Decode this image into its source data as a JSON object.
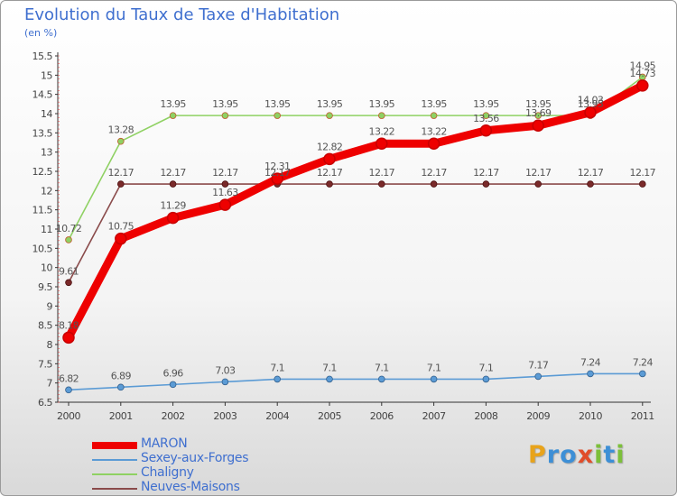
{
  "title": "Evolution du Taux de Taxe d'Habitation",
  "unit": "(en %)",
  "brand": {
    "letters": [
      "P",
      "r",
      "o",
      "x",
      "i",
      "t",
      "i"
    ],
    "colors": [
      "#e8a31b",
      "#3d8fd6",
      "#3d8fd6",
      "#e14d2a",
      "#7cbf3a",
      "#3d8fd6",
      "#7cbf3a"
    ]
  },
  "chart_data": {
    "type": "line",
    "title": "Evolution du Taux de Taxe d'Habitation",
    "ylabel": "(en %)",
    "xlabel": "",
    "ylim": [
      6.5,
      15.5
    ],
    "yticks": [
      "6.5",
      "7",
      "7.5",
      "8",
      "8.5",
      "9",
      "9.5",
      "10",
      "10.5",
      "11",
      "11.5",
      "12",
      "12.5",
      "13",
      "13.5",
      "14",
      "14.5",
      "15",
      "15.5"
    ],
    "categories": [
      "2000",
      "2001",
      "2002",
      "2003",
      "2004",
      "2005",
      "2006",
      "2007",
      "2008",
      "2009",
      "2010",
      "2011"
    ],
    "grid": false,
    "legend": "bottom-left",
    "series": [
      {
        "name": "MARON",
        "color": "#ee0000",
        "values": [
          8.18,
          10.75,
          11.29,
          11.63,
          12.31,
          12.82,
          13.22,
          13.22,
          13.56,
          13.69,
          14.03,
          14.73
        ],
        "labels": [
          "8.18",
          "10.75",
          "11.29",
          "11.63",
          "12.31",
          "12.82",
          "13.22",
          "13.22",
          "13.56",
          "13.69",
          "14.03",
          "14.73"
        ]
      },
      {
        "name": "Sexey-aux-Forges",
        "color": "#5b9bd5",
        "values": [
          6.82,
          6.89,
          6.96,
          7.03,
          7.1,
          7.1,
          7.1,
          7.1,
          7.1,
          7.17,
          7.24,
          7.24
        ],
        "labels": [
          "6.82",
          "6.89",
          "6.96",
          "7.03",
          "7.1",
          "7.1",
          "7.1",
          "7.1",
          "7.1",
          "7.17",
          "7.24",
          "7.24"
        ]
      },
      {
        "name": "Chaligny",
        "color": "#8fd163",
        "values": [
          10.72,
          13.28,
          13.95,
          13.95,
          13.95,
          13.95,
          13.95,
          13.95,
          13.95,
          13.95,
          13.95,
          14.95
        ],
        "labels": [
          "10.72",
          "13.28",
          "13.95",
          "13.95",
          "13.95",
          "13.95",
          "13.95",
          "13.95",
          "13.95",
          "13.95",
          "13.95",
          "14.95"
        ]
      },
      {
        "name": "Neuves-Maisons",
        "color": "#8a4b4b",
        "values": [
          9.61,
          12.17,
          12.17,
          12.17,
          12.17,
          12.17,
          12.17,
          12.17,
          12.17,
          12.17,
          12.17,
          12.17
        ],
        "labels": [
          "9.61",
          "12.17",
          "12.17",
          "12.17",
          "12.17",
          "12.17",
          "12.17",
          "12.17",
          "12.17",
          "12.17",
          "12.17",
          "12.17"
        ]
      }
    ]
  }
}
